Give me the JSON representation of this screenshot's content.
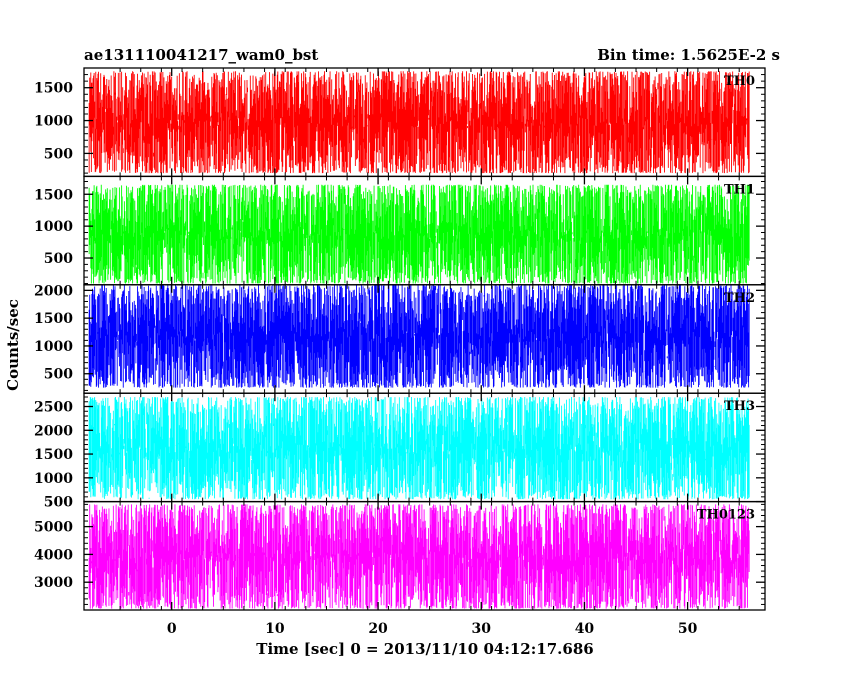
{
  "header": {
    "left_title": "ae131110041217_wam0_bst",
    "right_title": "Bin time: 1.5625E-2 s"
  },
  "chart_data": {
    "type": "line",
    "title": "ae131110041217_wam0_bst",
    "subtitle": "Bin time: 1.5625E-2 s",
    "xlabel": "Time [sec] 0 = 2013/11/10 04:12:17.686",
    "ylabel": "Counts/sec",
    "xlim": [
      -8.5,
      57.5
    ],
    "x_ticks": [
      0,
      10,
      20,
      30,
      40,
      50
    ],
    "data_x_range": [
      -8,
      56
    ],
    "grid": false,
    "panels": [
      {
        "name": "TH0",
        "color": "#ff0000",
        "ylim": [
          150,
          1800
        ],
        "y_ticks": [
          500,
          1000,
          1500
        ],
        "value_range": [
          200,
          1750
        ],
        "typical_level": 800
      },
      {
        "name": "TH1",
        "color": "#00ff00",
        "ylim": [
          80,
          1780
        ],
        "y_ticks": [
          500,
          1000,
          1500
        ],
        "value_range": [
          100,
          1650
        ],
        "typical_level": 700
      },
      {
        "name": "TH2",
        "color": "#0000ff",
        "ylim": [
          150,
          2100
        ],
        "y_ticks": [
          500,
          1000,
          1500,
          2000
        ],
        "value_range": [
          250,
          2100
        ],
        "typical_level": 1050
      },
      {
        "name": "TH3",
        "color": "#00ffff",
        "ylim": [
          500,
          2780
        ],
        "y_ticks": [
          500,
          1000,
          1500,
          2000,
          2500
        ],
        "value_range": [
          550,
          2700
        ],
        "typical_level": 1450
      },
      {
        "name": "TH0123",
        "color": "#ff00ff",
        "ylim": [
          2000,
          5900
        ],
        "y_ticks": [
          3000,
          4000,
          5000
        ],
        "value_range": [
          2050,
          5800
        ],
        "typical_level": 3800
      }
    ]
  }
}
